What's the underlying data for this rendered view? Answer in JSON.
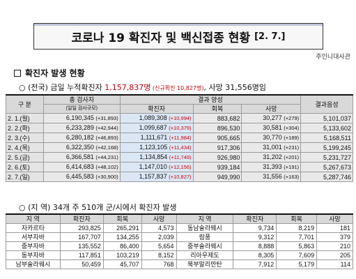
{
  "title": {
    "main": "코로나 19 확진자 및 백신접종 현황",
    "date": "[2. 7.]"
  },
  "org": "주인니대사관",
  "section1": {
    "heading": "확진자 발생 현황"
  },
  "summary": {
    "prefix": "○ (전국) 금일 누적확진자 ",
    "total": "1,157,837명",
    "new_open": " (신규확진 ",
    "new_value": "10,827명",
    "new_close": ")",
    "deaths": ", 사망 31,556명임"
  },
  "table1": {
    "headers": {
      "division": "구 분",
      "tests": "총 검사자",
      "tests_sub": "(일일 검사규모)",
      "results": "결과 양성",
      "confirmed": "확진자",
      "recovered": "회복",
      "deaths": "사망",
      "negative": "결과음성"
    },
    "rows": [
      {
        "date": "2. 1.(월)",
        "tests": "6,190,345",
        "tests_inc": "(+31,893)",
        "conf": "1,089,308",
        "conf_inc": "(+10,994)",
        "rec": "883,682",
        "death": "30,277",
        "death_inc": "(+279)",
        "neg": "5,101,037"
      },
      {
        "date": "2. 2.(화)",
        "tests": "6,233,289",
        "tests_inc": "(+42,944)",
        "conf": "1,099,687",
        "conf_inc": "(+10,379)",
        "rec": "896,530",
        "death": "30,581",
        "death_inc": "(+304)",
        "neg": "5,133,602"
      },
      {
        "date": "2. 3.(수)",
        "tests": "6,280,182",
        "tests_inc": "(+46,893)",
        "conf": "1,111,671",
        "conf_inc": "(+11,984)",
        "rec": "905,665",
        "death": "30,770",
        "death_inc": "(+189)",
        "neg": "5,168,511"
      },
      {
        "date": "2. 4.(목)",
        "tests": "6,322,350",
        "tests_inc": "(+42,168)",
        "conf": "1,123,105",
        "conf_inc": "(+11,434)",
        "rec": "917,306",
        "death": "31,001",
        "death_inc": "(+231)",
        "neg": "5,199,245"
      },
      {
        "date": "2. 5.(금)",
        "tests": "6,366,581",
        "tests_inc": "(+44,231)",
        "conf": "1,134,854",
        "conf_inc": "(+11,749)",
        "rec": "926,980",
        "death": "31,202",
        "death_inc": "(+201)",
        "neg": "5,231,727"
      },
      {
        "date": "2. 6.(토)",
        "tests": "6,414,683",
        "tests_inc": "(+48,102)",
        "conf": "1,147,010",
        "conf_inc": "(+12,156)",
        "rec": "939,184",
        "death": "31,393",
        "death_inc": "(+191)",
        "neg": "5,267,673"
      },
      {
        "date": "2. 7.(일)",
        "tests": "6,445,583",
        "tests_inc": "(+30,900)",
        "conf": "1,157,837",
        "conf_inc": "(+10,827)",
        "rec": "949,990",
        "death": "31,556",
        "death_inc": "(+163)",
        "neg": "5,287,746"
      }
    ]
  },
  "section2": {
    "text": "○ (지 역) 34개 주 510개 군/시에서 확진자 발생"
  },
  "table2": {
    "headers": {
      "region": "지 역",
      "confirmed": "확진자",
      "recovered": "회복",
      "deaths": "사망"
    },
    "rows": [
      {
        "r1": "자카르타",
        "c1": "293,825",
        "v1": "265,291",
        "d1": "4,573",
        "r2": "동남술라웨시",
        "c2": "9,734",
        "v2": "8,219",
        "d2": "181"
      },
      {
        "r1": "서부자바",
        "c1": "167,707",
        "v1": "134,255",
        "d1": "2,039",
        "r2": "람풍",
        "c2": "9,312",
        "v2": "7,701",
        "d2": "379"
      },
      {
        "r1": "중부자바",
        "c1": "135,552",
        "v1": "86,400",
        "d1": "5,654",
        "r2": "중부술라웨시",
        "c2": "8,888",
        "v2": "5,863",
        "d2": "210"
      },
      {
        "r1": "동부자바",
        "c1": "117,851",
        "v1": "103,219",
        "d1": "8,152",
        "r2": "리아우제도",
        "c2": "8,305",
        "v2": "7,609",
        "d2": "205"
      },
      {
        "r1": "남부술라웨시",
        "c1": "50,459",
        "v1": "45,707",
        "d1": "768",
        "r2": "북부말리만탄",
        "c2": "7,912",
        "v2": "5,179",
        "d2": "114"
      }
    ]
  }
}
